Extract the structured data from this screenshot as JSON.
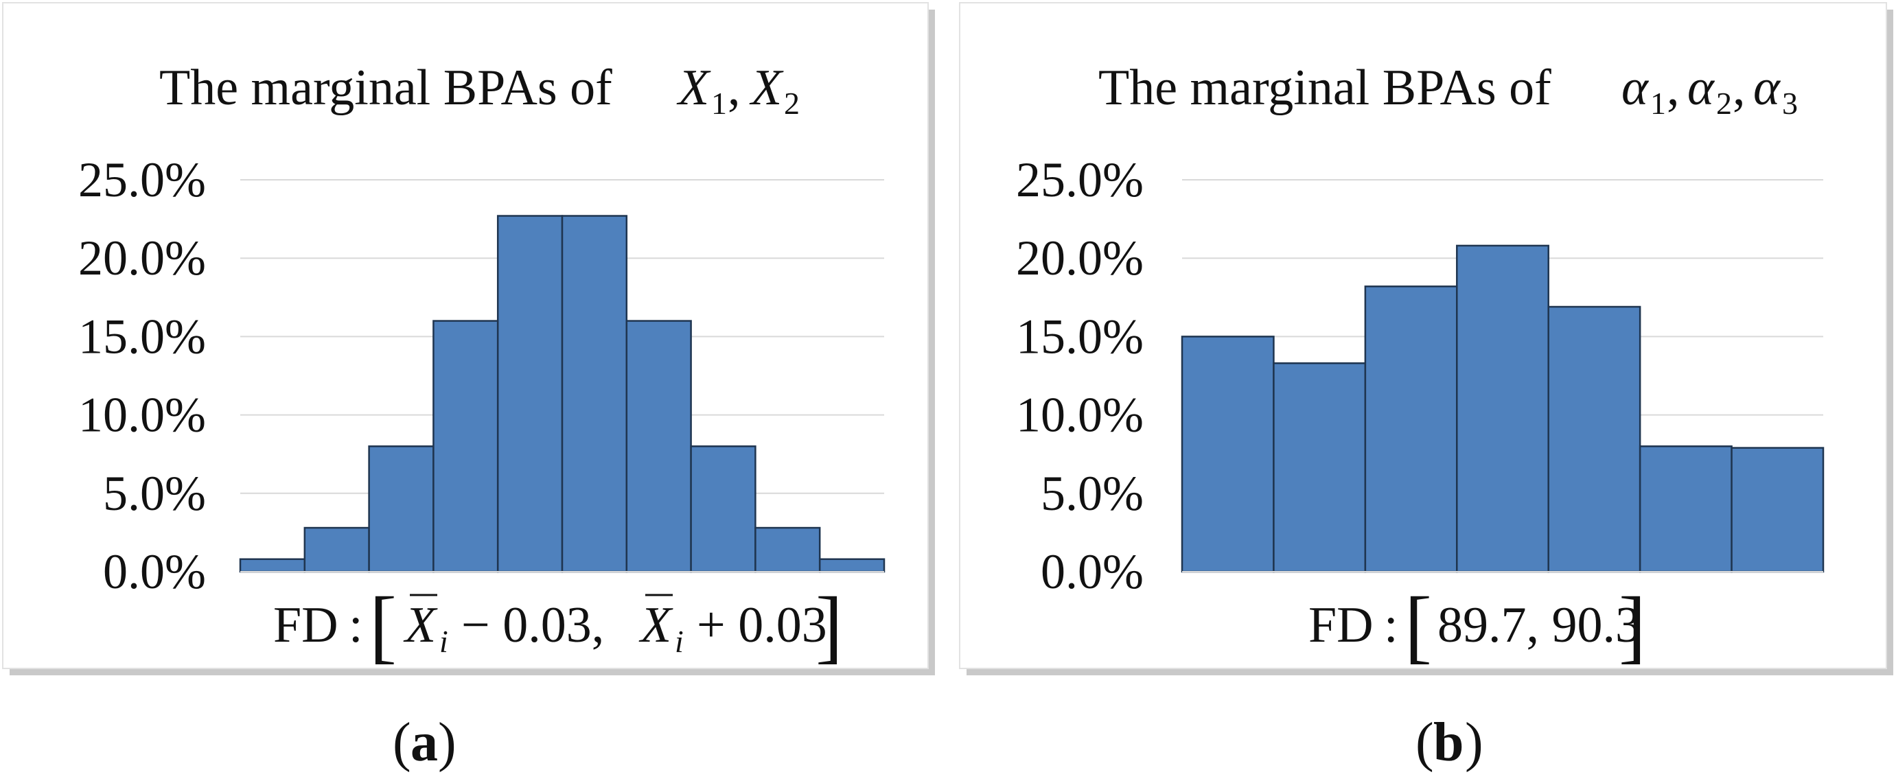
{
  "chart_data": [
    {
      "type": "bar",
      "title": "The marginal BPAs of",
      "title_math": [
        {
          "sym": "X",
          "sub": "1",
          "sep": ","
        },
        {
          "sym": "X",
          "sub": "2",
          "sep": ""
        }
      ],
      "ylim": [
        0,
        25
      ],
      "yticks": [
        "25.0%",
        "20.0%",
        "15.0%",
        "10.0%",
        "5.0%",
        "0.0%"
      ],
      "ytick_values": [
        25,
        20,
        15,
        10,
        5,
        0
      ],
      "values": [
        0.8,
        2.8,
        8.0,
        16.0,
        22.7,
        22.7,
        16.0,
        8.0,
        2.8,
        0.8
      ],
      "grid": true,
      "bar_color": "#4f81bd",
      "xlabel_parts": {
        "fd": "FD",
        "colon": ":",
        "open": "[",
        "left_sym": "X",
        "left_sub": "i",
        "left_op": "− 0.03,",
        "right_sym": "X",
        "right_sub": "i",
        "right_op": "+ 0.03",
        "close": "]"
      },
      "panel_label": {
        "open": "(",
        "letter": "a",
        "close": ")"
      }
    },
    {
      "type": "bar",
      "title": "The marginal BPAs of",
      "title_math": [
        {
          "sym": "α",
          "sub": "1",
          "sep": ","
        },
        {
          "sym": "α",
          "sub": "2",
          "sep": ","
        },
        {
          "sym": "α",
          "sub": "3",
          "sep": ""
        }
      ],
      "ylim": [
        0,
        25
      ],
      "yticks": [
        "25.0%",
        "20.0%",
        "15.0%",
        "10.0%",
        "5.0%",
        "0.0%"
      ],
      "ytick_values": [
        25,
        20,
        15,
        10,
        5,
        0
      ],
      "values": [
        15.0,
        13.3,
        18.2,
        20.8,
        16.9,
        8.0,
        7.9
      ],
      "grid": true,
      "bar_color": "#4f81bd",
      "xlabel_parts": {
        "fd": "FD",
        "colon": ":",
        "open": "[",
        "range": "89.7, 90.3",
        "close": "]"
      },
      "panel_label": {
        "open": "(",
        "letter": "b",
        "close": ")"
      }
    }
  ]
}
